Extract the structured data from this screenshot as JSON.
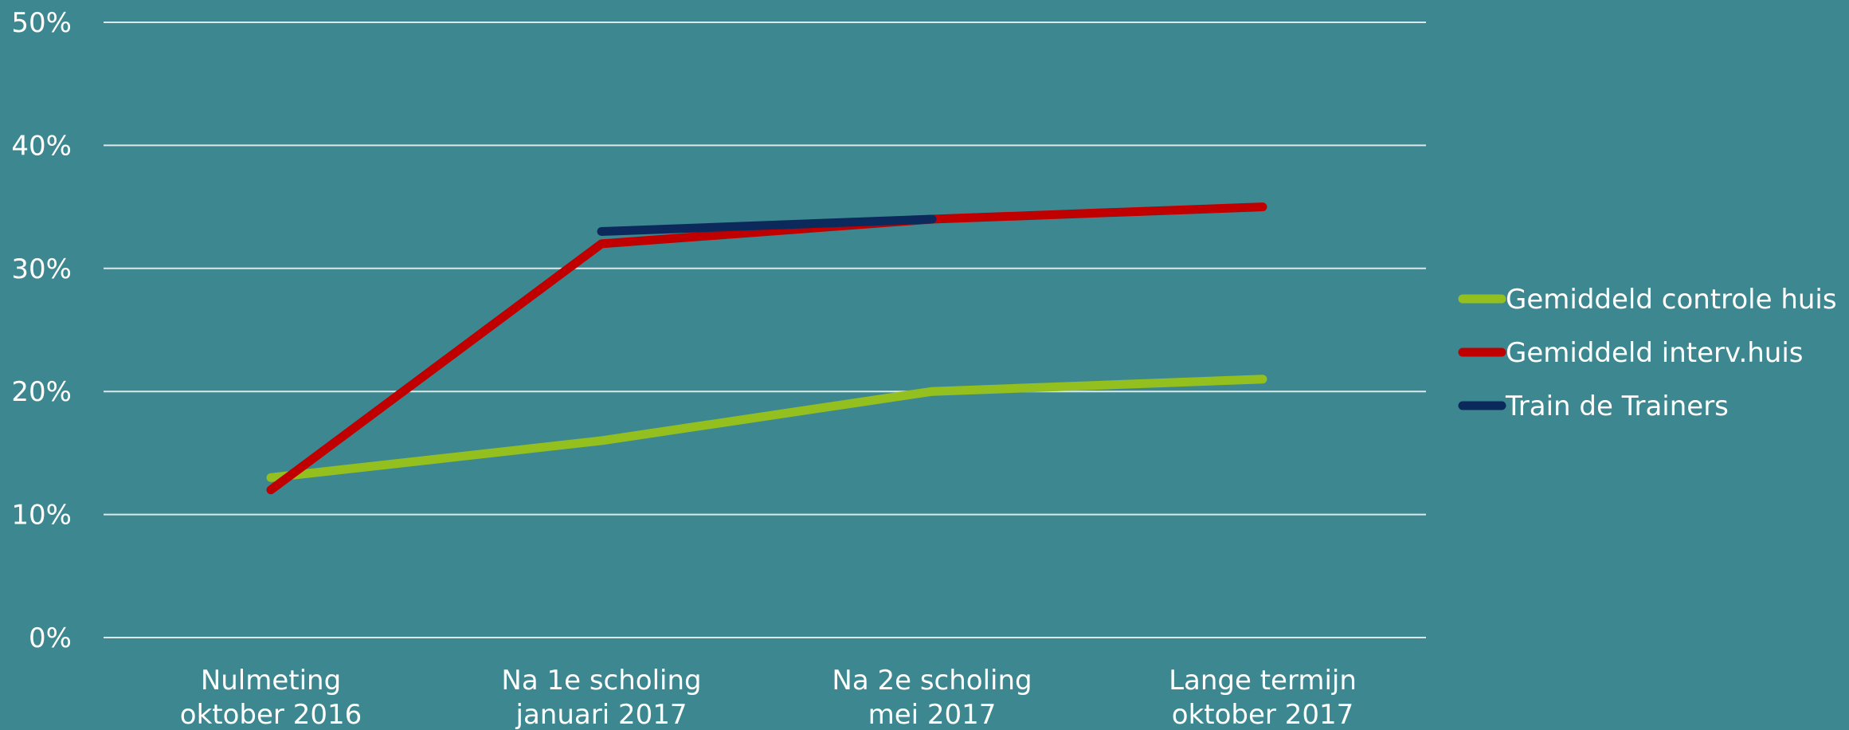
{
  "chart_data": {
    "type": "line",
    "categories": [
      [
        "Nulmeting",
        "oktober 2016"
      ],
      [
        "Na 1e scholing",
        "januari 2017"
      ],
      [
        "Na 2e scholing",
        "mei 2017"
      ],
      [
        "Lange termijn",
        "oktober 2017"
      ]
    ],
    "series": [
      {
        "name": "Gemiddeld controle huis",
        "color": "#93c01f",
        "values": [
          13,
          16,
          20,
          21
        ]
      },
      {
        "name": "Gemiddeld interv.huis",
        "color": "#c00000",
        "values": [
          12,
          32,
          34,
          35
        ]
      },
      {
        "name": "Train de Trainers",
        "color": "#0b2a5b",
        "values": [
          null,
          33,
          34,
          null
        ]
      }
    ],
    "ylim": [
      0,
      50
    ],
    "yticks": [
      0,
      10,
      20,
      30,
      40,
      50
    ],
    "ytick_suffix": "%",
    "grid": true,
    "legend_position": "right",
    "title": "",
    "xlabel": "",
    "ylabel": ""
  }
}
